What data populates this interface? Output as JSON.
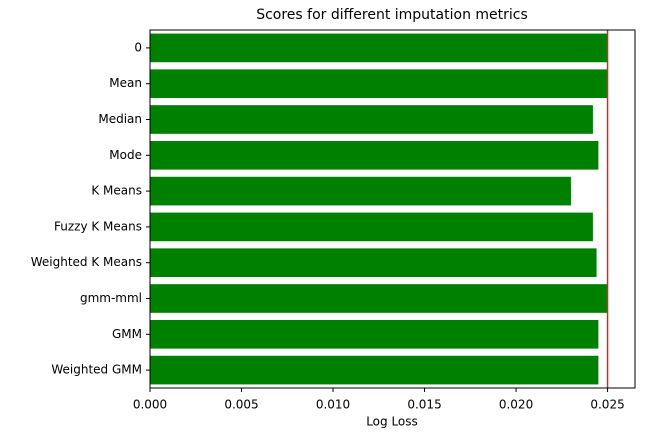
{
  "chart_data": {
    "type": "barh",
    "title": "Scores for different imputation metrics",
    "x_label": "Log Loss",
    "categories": [
      "0",
      "Mean",
      "Median",
      "Mode",
      "K Means",
      "Fuzzy K Means",
      "Weighted K Means",
      "gmm-mml",
      "GMM",
      "Weighted GMM"
    ],
    "values": [
      0.025,
      0.025,
      0.0242,
      0.0245,
      0.023,
      0.0242,
      0.0244,
      0.025,
      0.0245,
      0.0245
    ],
    "color": "#008000",
    "reference_line": {
      "value": 0.025,
      "color": "#d62728"
    },
    "xlim": [
      0,
      0.0265
    ],
    "xticks": [
      {
        "value": 0,
        "label": "0.000"
      },
      {
        "value": 0.005,
        "label": "0.005"
      },
      {
        "value": 0.01,
        "label": "0.010"
      },
      {
        "value": 0.015,
        "label": "0.015"
      },
      {
        "value": 0.02,
        "label": "0.020"
      },
      {
        "value": 0.025,
        "label": "0.025"
      }
    ]
  }
}
